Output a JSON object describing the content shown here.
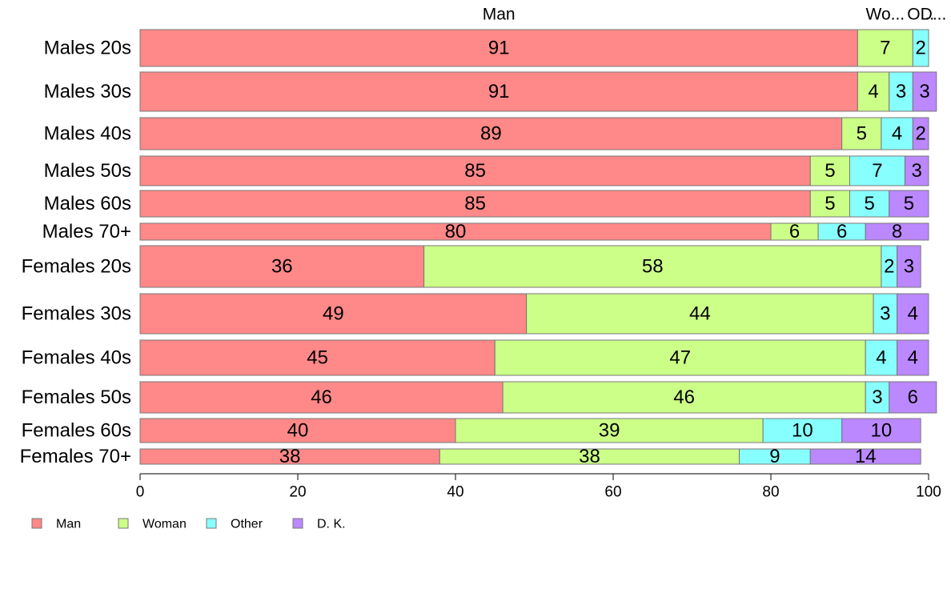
{
  "chart_data": {
    "type": "bar",
    "orientation": "horizontal",
    "stacked": true,
    "variable_width": true,
    "categories": [
      "Males 20s",
      "Males 30s",
      "Males 40s",
      "Males 50s",
      "Males 60s",
      "Males 70+",
      "Females 20s",
      "Females 30s",
      "Females 40s",
      "Females 50s",
      "Females 60s",
      "Females 70+"
    ],
    "series": [
      {
        "name": "Man",
        "color": "#FF8888",
        "values": [
          91,
          91,
          89,
          85,
          85,
          80,
          36,
          49,
          45,
          46,
          40,
          38
        ]
      },
      {
        "name": "Woman",
        "color": "#CCFF88",
        "values": [
          7,
          4,
          5,
          5,
          5,
          6,
          58,
          44,
          47,
          46,
          39,
          38
        ]
      },
      {
        "name": "Other",
        "color": "#88FFFF",
        "values": [
          2,
          3,
          4,
          7,
          5,
          6,
          2,
          3,
          4,
          3,
          10,
          9
        ]
      },
      {
        "name": "D. K.",
        "color": "#BB88FF",
        "values": [
          0,
          3,
          2,
          3,
          5,
          8,
          3,
          4,
          4,
          6,
          10,
          14
        ]
      }
    ],
    "top_labels": [
      "Man",
      "Wo...",
      "O...",
      "D..."
    ],
    "xlim": [
      0,
      100
    ],
    "xticks": [
      "0",
      "20",
      "40",
      "60",
      "80",
      "100"
    ],
    "legend": {
      "position": "bottom-left",
      "labels": [
        "Man",
        "Woman",
        "Other",
        "D. K."
      ]
    },
    "grid": false
  }
}
